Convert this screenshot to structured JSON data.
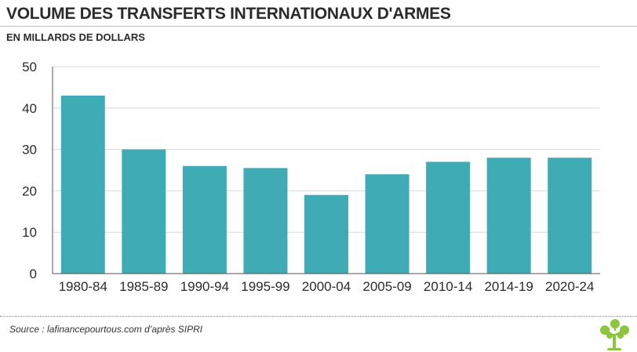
{
  "title": "VOLUME DES TRANSFERTS INTERNATIONAUX D'ARMES",
  "subtitle": "EN MILLARDS DE DOLLARS",
  "source": "Source : lafinancepourtous.com d’après SIPRI",
  "logo_icon": "tree-icon",
  "colors": {
    "bar": "#3fabb5",
    "grid": "#d9d9d9",
    "axis": "#555555",
    "text": "#2b2b2b",
    "logo": "#8cc63f"
  },
  "chart_data": {
    "type": "bar",
    "title": "VOLUME DES TRANSFERTS INTERNATIONAUX D'ARMES",
    "subtitle": "EN MILLARDS DE DOLLARS",
    "categories": [
      "1980-84",
      "1985-89",
      "1990-94",
      "1995-99",
      "2000-04",
      "2005-09",
      "2010-14",
      "2014-19",
      "2020-24"
    ],
    "values": [
      43,
      30,
      26,
      25.5,
      19,
      24,
      27,
      28,
      28
    ],
    "ylim": [
      0,
      50
    ],
    "yticks": [
      0,
      10,
      20,
      30,
      40,
      50
    ],
    "xlabel": "",
    "ylabel": "",
    "grid": true,
    "legend": "none"
  }
}
